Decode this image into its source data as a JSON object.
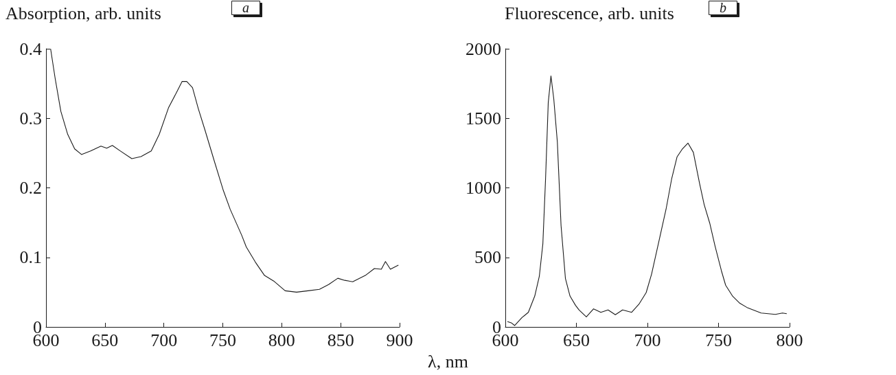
{
  "chart_data": [
    {
      "type": "line",
      "title": "a",
      "ylabel": "Absorption, arb. units",
      "xlabel": "λ, nm",
      "xlim": [
        600,
        900
      ],
      "xticks": [
        600,
        650,
        700,
        750,
        800,
        850,
        900
      ],
      "ylim": [
        0,
        0.4
      ],
      "yticks": [
        0,
        0.1,
        0.2,
        0.3,
        0.4
      ],
      "grid": false,
      "marker": "none",
      "line_style": "solid",
      "series": [
        {
          "color": "#1a1a1a",
          "x": [
            603.9,
            607.8,
            612.6,
            618.4,
            624.3,
            630.1,
            637.9,
            646.6,
            651.5,
            656.3,
            663.1,
            672.8,
            680.6,
            689.3,
            696.1,
            703.9,
            710.7,
            715.5,
            719.4,
            724.3,
            729.2,
            734.9,
            742.7,
            750.5,
            756.3,
            766.0,
            769.9,
            777.7,
            785.4,
            793.2,
            802.9,
            812.6,
            822.3,
            832.0,
            839.8,
            847.6,
            853.4,
            860.2,
            870.9,
            878.6,
            884.5,
            888.0,
            892.2,
            899.0
          ],
          "values": [
            0.4,
            0.357,
            0.31,
            0.277,
            0.256,
            0.248,
            0.253,
            0.26,
            0.257,
            0.261,
            0.253,
            0.242,
            0.245,
            0.253,
            0.277,
            0.315,
            0.337,
            0.353,
            0.353,
            0.344,
            0.314,
            0.283,
            0.239,
            0.196,
            0.169,
            0.132,
            0.115,
            0.093,
            0.074,
            0.066,
            0.052,
            0.05,
            0.052,
            0.054,
            0.061,
            0.07,
            0.067,
            0.065,
            0.074,
            0.084,
            0.083,
            0.094,
            0.083,
            0.089
          ]
        }
      ]
    },
    {
      "type": "line",
      "title": "b",
      "ylabel": "Fluorescence, arb. units",
      "xlim": [
        600,
        800
      ],
      "xticks": [
        600,
        650,
        700,
        750,
        800
      ],
      "ylim": [
        0,
        2000
      ],
      "yticks": [
        0,
        500,
        1000,
        1500,
        2000
      ],
      "grid": false,
      "marker": "none",
      "line_style": "solid",
      "series": [
        {
          "color": "#1a1a1a",
          "x": [
            601.5,
            604.1,
            606.6,
            611.7,
            616.2,
            620.7,
            623.9,
            626.4,
            628.3,
            630.2,
            632.1,
            634.1,
            636.6,
            639.2,
            642.3,
            645.5,
            649.4,
            651.9,
            657.0,
            662.1,
            667.2,
            672.3,
            677.4,
            682.5,
            688.9,
            694.0,
            699.1,
            702.9,
            708.0,
            713.1,
            717.0,
            720.8,
            724.6,
            728.5,
            732.3,
            736.7,
            739.9,
            743.8,
            747.6,
            752.0,
            755.0,
            760.0,
            765.0,
            770.0,
            780.0,
            790.0,
            795.0,
            798.0
          ],
          "values": [
            38,
            30,
            10,
            67,
            105,
            222,
            363,
            597,
            1063,
            1613,
            1805,
            1638,
            1330,
            730,
            347,
            222,
            155,
            122,
            72,
            130,
            105,
            122,
            88,
            122,
            105,
            163,
            247,
            380,
            613,
            847,
            1063,
            1222,
            1280,
            1322,
            1255,
            1030,
            880,
            747,
            580,
            405,
            300,
            220,
            170,
            140,
            100,
            90,
            100,
            95
          ]
        }
      ]
    }
  ]
}
